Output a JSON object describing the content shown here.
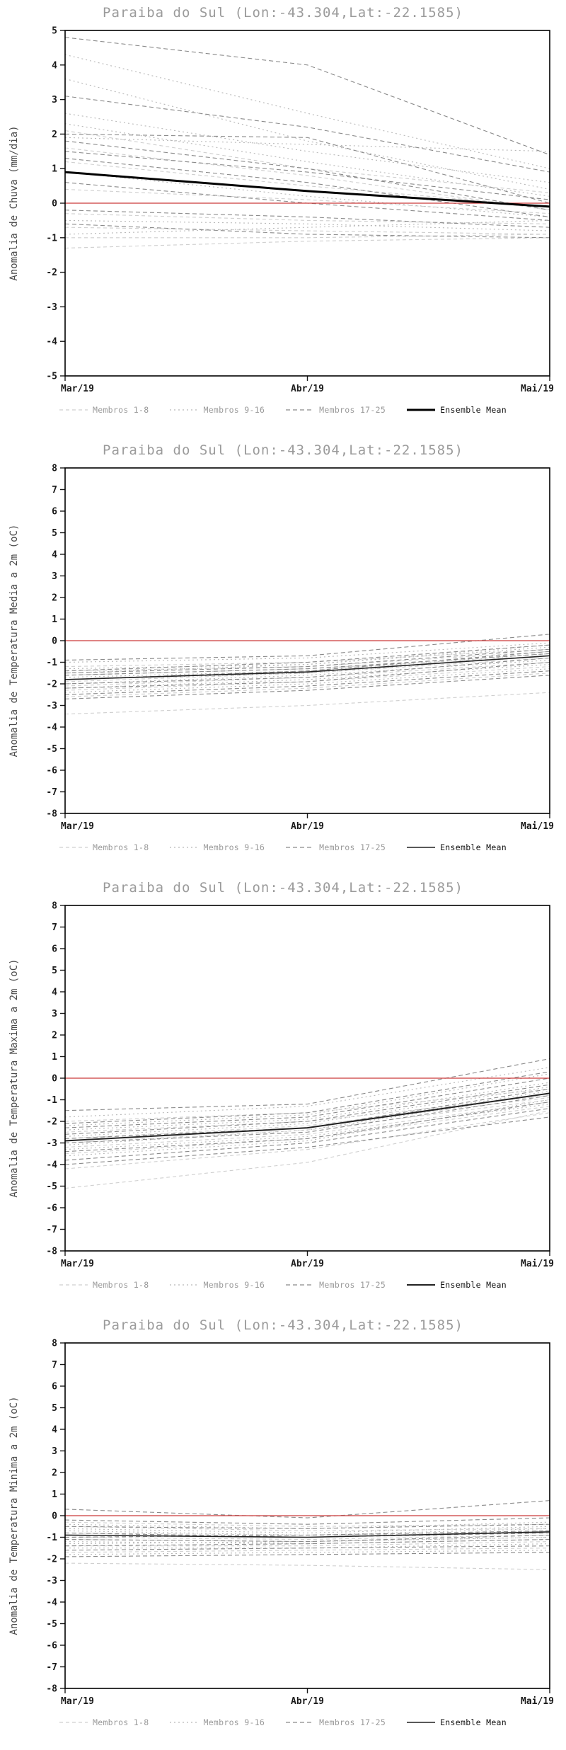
{
  "page": {
    "background": "#ffffff"
  },
  "chart_data": [
    {
      "type": "line",
      "title": "Paraiba do Sul (Lon:-43.304,Lat:-22.1585)",
      "ylabel": "Anomalia de Chuva (mm/dia)",
      "x_labels": [
        "Mar/19",
        "Abr/19",
        "Mai/19"
      ],
      "ymin": -5,
      "ymax": 5,
      "ytick_step": 1,
      "grid": false,
      "legend_position": "bottom",
      "zero_line": {
        "value": 0,
        "color": "#cc3a3a"
      },
      "ensemble_mean": {
        "label": "Ensemble Mean",
        "color": "#000000",
        "width": 3,
        "values": [
          0.9,
          0.35,
          -0.1
        ]
      },
      "groups": [
        {
          "label": "Membros 1-8",
          "color": "#cfcfcf",
          "dash": "5 4",
          "members": [
            [
              2.1,
              1.0,
              0.3
            ],
            [
              1.6,
              0.8,
              -0.2
            ],
            [
              1.2,
              0.5,
              -0.1
            ],
            [
              0.4,
              0.1,
              -0.3
            ],
            [
              -0.3,
              -0.5,
              -0.6
            ],
            [
              -0.7,
              -0.8,
              -0.9
            ],
            [
              -1.0,
              -1.0,
              -0.9
            ],
            [
              -1.3,
              -1.1,
              -1.0
            ]
          ]
        },
        {
          "label": "Membros 9-16",
          "color": "#b8b8b8",
          "dash": "2 4",
          "members": [
            [
              4.3,
              2.6,
              1.0
            ],
            [
              3.6,
              1.8,
              0.4
            ],
            [
              2.6,
              1.5,
              0.6
            ],
            [
              2.3,
              1.2,
              0.2
            ],
            [
              1.9,
              1.7,
              1.5
            ],
            [
              0.9,
              0.2,
              -0.4
            ],
            [
              -0.5,
              -0.6,
              -0.8
            ],
            [
              -0.9,
              -0.7,
              -0.5
            ]
          ]
        },
        {
          "label": "Membros 17-25",
          "color": "#8a8a8a",
          "dash": "6 4",
          "members": [
            [
              4.8,
              4.0,
              1.4
            ],
            [
              3.1,
              2.2,
              0.9
            ],
            [
              2.0,
              1.9,
              0.0
            ],
            [
              1.8,
              1.0,
              -0.2
            ],
            [
              1.5,
              0.9,
              0.1
            ],
            [
              1.3,
              0.6,
              -0.4
            ],
            [
              0.6,
              0.0,
              -0.5
            ],
            [
              -0.2,
              -0.4,
              -0.7
            ],
            [
              -0.6,
              -0.9,
              -1.0
            ]
          ]
        }
      ]
    },
    {
      "type": "line",
      "title": "Paraiba do Sul (Lon:-43.304,Lat:-22.1585)",
      "ylabel": "Anomalia de Temperatura Media a 2m (oC)",
      "x_labels": [
        "Mar/19",
        "Abr/19",
        "Mai/19"
      ],
      "ymin": -8,
      "ymax": 8,
      "ytick_step": 1,
      "grid": false,
      "legend_position": "bottom",
      "zero_line": {
        "value": 0,
        "color": "#cc3a3a"
      },
      "ensemble_mean": {
        "label": "Ensemble Mean",
        "color": "#222222",
        "width": 1.6,
        "values": [
          -1.8,
          -1.45,
          -0.7
        ]
      },
      "groups": [
        {
          "label": "Membros 1-8",
          "color": "#cfcfcf",
          "dash": "5 4",
          "members": [
            [
              -1.4,
              -1.2,
              -0.5
            ],
            [
              -1.6,
              -1.3,
              -0.7
            ],
            [
              -1.9,
              -1.5,
              -0.8
            ],
            [
              -2.1,
              -1.7,
              -1.0
            ],
            [
              -2.3,
              -1.9,
              -1.2
            ],
            [
              -1.2,
              -1.0,
              -0.4
            ],
            [
              -2.6,
              -2.2,
              -1.5
            ],
            [
              -3.4,
              -3.0,
              -2.4
            ]
          ]
        },
        {
          "label": "Membros 9-16",
          "color": "#b8b8b8",
          "dash": "2 4",
          "members": [
            [
              -1.5,
              -1.1,
              -0.3
            ],
            [
              -1.7,
              -1.4,
              -0.6
            ],
            [
              -2.0,
              -1.6,
              -0.9
            ],
            [
              -2.2,
              -1.8,
              -1.1
            ],
            [
              -1.3,
              -1.1,
              -0.2
            ],
            [
              -1.8,
              -1.5,
              -0.7
            ],
            [
              -2.4,
              -2.0,
              -1.3
            ],
            [
              -1.0,
              -0.8,
              -0.1
            ]
          ]
        },
        {
          "label": "Membros 17-25",
          "color": "#8a8a8a",
          "dash": "6 4",
          "members": [
            [
              -0.9,
              -0.7,
              0.3
            ],
            [
              -1.5,
              -1.2,
              -0.4
            ],
            [
              -1.8,
              -1.4,
              -0.5
            ],
            [
              -2.0,
              -1.7,
              -0.8
            ],
            [
              -2.2,
              -1.9,
              -1.0
            ],
            [
              -1.6,
              -1.3,
              -0.6
            ],
            [
              -1.4,
              -1.0,
              -0.2
            ],
            [
              -2.5,
              -2.1,
              -1.4
            ],
            [
              -2.7,
              -2.3,
              -1.6
            ]
          ]
        }
      ]
    },
    {
      "type": "line",
      "title": "Paraiba do Sul (Lon:-43.304,Lat:-22.1585)",
      "ylabel": "Anomalia de Temperatura Maxima a 2m (oC)",
      "x_labels": [
        "Mar/19",
        "Abr/19",
        "Mai/19"
      ],
      "ymin": -8,
      "ymax": 8,
      "ytick_step": 1,
      "grid": false,
      "legend_position": "bottom",
      "zero_line": {
        "value": 0,
        "color": "#cc3a3a"
      },
      "ensemble_mean": {
        "label": "Ensemble Mean",
        "color": "#222222",
        "width": 2,
        "values": [
          -2.9,
          -2.3,
          -0.7
        ]
      },
      "groups": [
        {
          "label": "Membros 1-8",
          "color": "#cfcfcf",
          "dash": "5 4",
          "members": [
            [
              -2.5,
              -2.0,
              -0.8
            ],
            [
              -3.0,
              -2.4,
              -1.0
            ],
            [
              -3.5,
              -2.8,
              -1.3
            ],
            [
              -4.2,
              -3.3,
              -1.6
            ],
            [
              -5.1,
              -3.9,
              -1.5
            ],
            [
              -2.0,
              -1.6,
              -0.5
            ],
            [
              -2.8,
              -2.2,
              -0.9
            ],
            [
              -3.2,
              -2.6,
              -1.1
            ]
          ]
        },
        {
          "label": "Membros 9-16",
          "color": "#b8b8b8",
          "dash": "2 4",
          "members": [
            [
              -2.2,
              -1.7,
              0.2
            ],
            [
              -2.7,
              -2.1,
              -0.4
            ],
            [
              -3.1,
              -2.4,
              -0.7
            ],
            [
              -3.6,
              -2.9,
              -1.0
            ],
            [
              -1.8,
              -1.3,
              0.5
            ],
            [
              -2.9,
              -2.3,
              -0.6
            ],
            [
              -3.3,
              -2.7,
              -1.2
            ],
            [
              -2.4,
              -1.9,
              -0.2
            ]
          ]
        },
        {
          "label": "Membros 17-25",
          "color": "#8a8a8a",
          "dash": "6 4",
          "members": [
            [
              -1.5,
              -1.2,
              0.9
            ],
            [
              -2.1,
              -1.6,
              0.3
            ],
            [
              -2.6,
              -2.0,
              -0.3
            ],
            [
              -3.0,
              -2.5,
              -0.8
            ],
            [
              -3.4,
              -2.8,
              -1.1
            ],
            [
              -3.8,
              -3.0,
              -1.4
            ],
            [
              -2.3,
              -1.8,
              0.0
            ],
            [
              -2.8,
              -2.3,
              -0.5
            ],
            [
              -4.0,
              -3.2,
              -1.8
            ]
          ]
        }
      ]
    },
    {
      "type": "line",
      "title": "Paraiba do Sul (Lon:-43.304,Lat:-22.1585)",
      "ylabel": "Anomalia de Temperatura Minima a 2m (oC)",
      "x_labels": [
        "Mar/19",
        "Abr/19",
        "Mai/19"
      ],
      "ymin": -8,
      "ymax": 8,
      "ytick_step": 1,
      "grid": false,
      "legend_position": "bottom",
      "zero_line": {
        "value": 0,
        "color": "#cc3a3a"
      },
      "ensemble_mean": {
        "label": "Ensemble Mean",
        "color": "#222222",
        "width": 1.6,
        "values": [
          -0.9,
          -1.0,
          -0.75
        ]
      },
      "groups": [
        {
          "label": "Membros 1-8",
          "color": "#cfcfcf",
          "dash": "5 4",
          "members": [
            [
              -0.5,
              -0.7,
              -0.6
            ],
            [
              -0.8,
              -0.9,
              -0.8
            ],
            [
              -1.1,
              -1.2,
              -1.0
            ],
            [
              -1.4,
              -1.4,
              -1.2
            ],
            [
              -1.7,
              -1.6,
              -1.5
            ],
            [
              -2.2,
              -2.3,
              -2.5
            ],
            [
              -0.3,
              -0.5,
              -0.4
            ],
            [
              -1.0,
              -1.1,
              -0.9
            ]
          ]
        },
        {
          "label": "Membros 9-16",
          "color": "#b8b8b8",
          "dash": "2 4",
          "members": [
            [
              -0.6,
              -0.8,
              -0.5
            ],
            [
              -0.9,
              -1.0,
              -0.7
            ],
            [
              -1.2,
              -1.3,
              -1.1
            ],
            [
              -1.5,
              -1.5,
              -1.3
            ],
            [
              -0.4,
              -0.6,
              -0.3
            ],
            [
              -1.8,
              -1.7,
              -1.6
            ],
            [
              -0.7,
              -0.9,
              -0.6
            ],
            [
              -1.3,
              -1.2,
              -1.0
            ]
          ]
        },
        {
          "label": "Membros 17-25",
          "color": "#8a8a8a",
          "dash": "6 4",
          "members": [
            [
              0.3,
              -0.1,
              0.7
            ],
            [
              -0.2,
              -0.4,
              -0.1
            ],
            [
              -0.5,
              -0.6,
              -0.4
            ],
            [
              -0.8,
              -1.0,
              -0.8
            ],
            [
              -1.1,
              -1.2,
              -0.9
            ],
            [
              -1.4,
              -1.3,
              -1.1
            ],
            [
              -1.6,
              -1.5,
              -1.4
            ],
            [
              -1.0,
              -0.9,
              -0.7
            ],
            [
              -1.9,
              -1.8,
              -1.7
            ]
          ]
        }
      ]
    }
  ],
  "legend_text_color_members": "#9a9a9a",
  "legend_text_color_mean": "#111111"
}
